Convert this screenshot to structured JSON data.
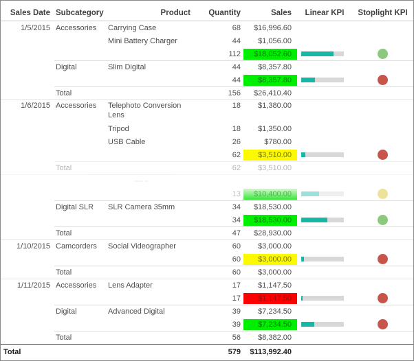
{
  "colors": {
    "green_bg": "#00ef00",
    "green_text": "#0a7a0a",
    "yellow_bg": "#fdf900",
    "yellow_text": "#7b7600",
    "red_bg": "#fe0000",
    "red_text": "#8e1111",
    "kpi_teal": "#18b7a5",
    "kpi_track": "#d8d8d8",
    "dot_green": "#8cc97c",
    "dot_red": "#c7554c",
    "dot_yellow": "#ead982"
  },
  "chart_data": {
    "type": "table",
    "columns": [
      "Sales Date",
      "Subcategory",
      "Product",
      "Quantity",
      "Sales",
      "Linear KPI",
      "Stoplight KPI"
    ],
    "rows": [
      {
        "row_type": "detail",
        "date": "1/5/2015",
        "subcategory": "Accessories",
        "product": "Carrying Case",
        "quantity": "68",
        "sales": "$16,996.60",
        "separator": "none"
      },
      {
        "row_type": "detail",
        "product": "Mini Battery Charger",
        "quantity": "44",
        "sales": "$1,056.00",
        "separator": "none"
      },
      {
        "row_type": "subtotal",
        "quantity": "112",
        "sales": "$18,052.60",
        "sales_bg": "green",
        "linear_kpi_pct": 76,
        "stoplight": "green",
        "separator": "none"
      },
      {
        "row_type": "detail",
        "subcategory": "Digital",
        "product": "Slim Digital",
        "quantity": "44",
        "sales": "$8,357.80",
        "separator": "sub"
      },
      {
        "row_type": "subtotal",
        "quantity": "44",
        "sales": "$8,357.80",
        "sales_bg": "green",
        "linear_kpi_pct": 33,
        "stoplight": "red",
        "separator": "none"
      },
      {
        "row_type": "total",
        "total_label": "Total",
        "quantity": "156",
        "sales": "$26,410.40",
        "separator": "sub"
      },
      {
        "row_type": "detail",
        "date": "1/6/2015",
        "subcategory": "Accessories",
        "product": "Telephoto Conversion Lens",
        "quantity": "18",
        "sales": "$1,380.00",
        "separator": "full",
        "tall": true
      },
      {
        "row_type": "detail",
        "product": "Tripod",
        "quantity": "18",
        "sales": "$1,350.00",
        "separator": "none"
      },
      {
        "row_type": "detail",
        "product": "USB Cable",
        "quantity": "26",
        "sales": "$780.00",
        "separator": "none"
      },
      {
        "row_type": "subtotal",
        "quantity": "62",
        "sales": "$3,510.00",
        "sales_bg": "yellow",
        "linear_kpi_pct": 10,
        "stoplight": "red",
        "separator": "none"
      },
      {
        "row_type": "total",
        "total_label": "Total",
        "quantity": "62",
        "sales": "$3,510.00",
        "separator": "sub",
        "faded": true
      },
      {
        "row_type": "ghost",
        "separator": "full",
        "faded": true
      },
      {
        "row_type": "subtotal",
        "quantity": "13",
        "sales": "$10,400.00",
        "sales_bg": "green",
        "linear_kpi_pct": 42,
        "stoplight": "yellow",
        "separator": "none",
        "faded_gradient": true
      },
      {
        "row_type": "detail",
        "subcategory": "Digital SLR",
        "product": "SLR Camera 35mm",
        "quantity": "34",
        "sales": "$18,530.00",
        "separator": "sub"
      },
      {
        "row_type": "subtotal",
        "quantity": "34",
        "sales": "$18,530.00",
        "sales_bg": "green",
        "linear_kpi_pct": 62,
        "stoplight": "green",
        "separator": "none"
      },
      {
        "row_type": "total",
        "total_label": "Total",
        "quantity": "47",
        "sales": "$28,930.00",
        "separator": "sub"
      },
      {
        "row_type": "detail",
        "date": "1/10/2015",
        "subcategory": "Camcorders",
        "product": "Social Videographer",
        "quantity": "60",
        "sales": "$3,000.00",
        "separator": "full"
      },
      {
        "row_type": "subtotal",
        "quantity": "60",
        "sales": "$3,000.00",
        "sales_bg": "yellow",
        "linear_kpi_pct": 7,
        "stoplight": "red",
        "separator": "none"
      },
      {
        "row_type": "total",
        "total_label": "Total",
        "quantity": "60",
        "sales": "$3,000.00",
        "separator": "sub"
      },
      {
        "row_type": "detail",
        "date": "1/11/2015",
        "subcategory": "Accessories",
        "product": "Lens Adapter",
        "quantity": "17",
        "sales": "$1,147.50",
        "separator": "full"
      },
      {
        "row_type": "subtotal",
        "quantity": "17",
        "sales": "$1,147.50",
        "sales_bg": "red",
        "linear_kpi_pct": 4,
        "stoplight": "red",
        "separator": "none"
      },
      {
        "row_type": "detail",
        "subcategory": "Digital",
        "product": "Advanced Digital",
        "quantity": "39",
        "sales": "$7,234.50",
        "separator": "sub"
      },
      {
        "row_type": "subtotal",
        "quantity": "39",
        "sales": "$7,234.50",
        "sales_bg": "green",
        "linear_kpi_pct": 30,
        "stoplight": "red",
        "separator": "none"
      },
      {
        "row_type": "total",
        "total_label": "Total",
        "quantity": "56",
        "sales": "$8,382.00",
        "separator": "sub"
      },
      {
        "row_type": "grandtotal",
        "total_label": "Total",
        "quantity": "579",
        "sales": "$113,992.40",
        "separator": "dark"
      }
    ]
  }
}
